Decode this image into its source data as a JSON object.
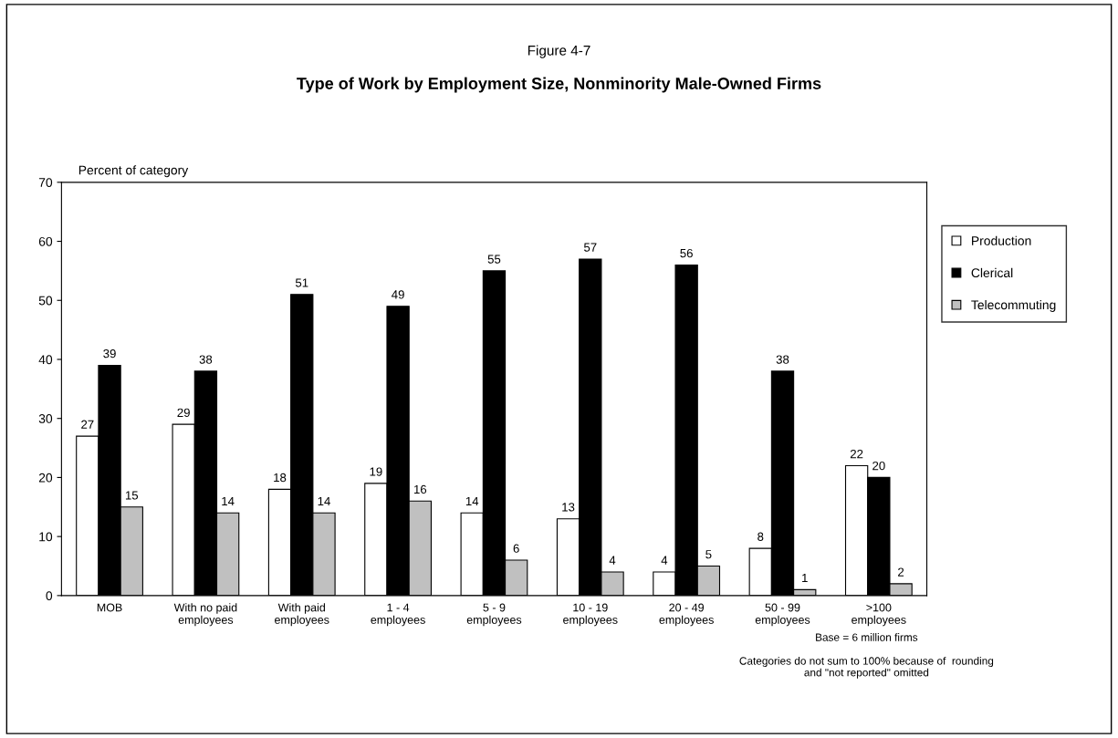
{
  "chart_data": {
    "type": "bar",
    "title": "Type of Work by Employment Size, Nonminority Male-Owned Firms",
    "subtitle": "Figure 4-7",
    "ylabel": "Percent of category",
    "categories": [
      "MOB",
      "With no paid\nemployees",
      "With paid\nemployees",
      "1 - 4\nemployees",
      "5 - 9\nemployees",
      "10 - 19\nemployees",
      "20 - 49\nemployees",
      "50 - 99\nemployees",
      ">100\nemployees"
    ],
    "series": [
      {
        "name": "Production",
        "color": "#ffffff",
        "values": [
          27,
          29,
          18,
          19,
          14,
          13,
          4,
          8,
          22
        ]
      },
      {
        "name": "Clerical",
        "color": "#000000",
        "values": [
          39,
          38,
          51,
          49,
          55,
          57,
          56,
          38,
          20
        ]
      },
      {
        "name": "Telecommuting",
        "color": "#c0c0c0",
        "values": [
          15,
          14,
          14,
          16,
          6,
          4,
          5,
          1,
          2
        ]
      }
    ],
    "ylim": [
      0,
      70
    ],
    "yticks": [
      0,
      10,
      20,
      30,
      40,
      50,
      60,
      70
    ],
    "grid": false,
    "legend": "right",
    "data_labels": true,
    "annotations": [
      "Base = 6 million firms",
      "Categories do not sum to 100% because of  rounding\nand \"not reported\" omitted"
    ]
  }
}
